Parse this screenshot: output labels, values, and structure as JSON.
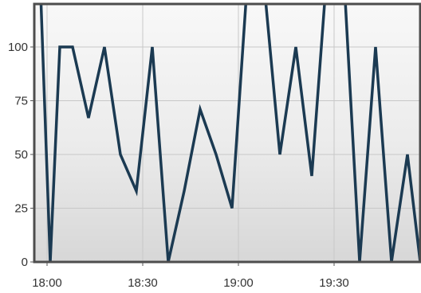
{
  "chart_data": {
    "type": "line",
    "title": "",
    "xlabel": "",
    "ylabel": "",
    "x_time_range": [
      "17:56",
      "19:57"
    ],
    "ylim": [
      0,
      120
    ],
    "y_ticks": [
      0,
      25,
      50,
      75,
      100
    ],
    "y_tick_labels": [
      "0",
      "25",
      "50",
      "75",
      "100"
    ],
    "x_ticks": [
      "18:00",
      "18:30",
      "19:00",
      "19:30"
    ],
    "x_tick_labels": [
      "18:00",
      "18:30",
      "19:00",
      "19:30"
    ],
    "grid": true,
    "legend": "none",
    "series": [
      {
        "color": "#1b3a52",
        "points": [
          [
            "17:58",
            125
          ],
          [
            "18:01",
            0
          ],
          [
            "18:04",
            100
          ],
          [
            "18:08",
            100
          ],
          [
            "18:13",
            67
          ],
          [
            "18:18",
            100
          ],
          [
            "18:23",
            50
          ],
          [
            "18:28",
            33
          ],
          [
            "18:33",
            100
          ],
          [
            "18:38",
            0
          ],
          [
            "18:43",
            33
          ],
          [
            "18:48",
            71
          ],
          [
            "18:53",
            50
          ],
          [
            "18:58",
            25
          ],
          [
            "19:03",
            135
          ],
          [
            "19:08",
            130
          ],
          [
            "19:13",
            50
          ],
          [
            "19:18",
            100
          ],
          [
            "19:23",
            40
          ],
          [
            "19:28",
            140
          ],
          [
            "19:33",
            135
          ],
          [
            "19:38",
            0
          ],
          [
            "19:43",
            100
          ],
          [
            "19:48",
            0
          ],
          [
            "19:53",
            50
          ],
          [
            "19:57",
            0
          ]
        ]
      }
    ]
  }
}
